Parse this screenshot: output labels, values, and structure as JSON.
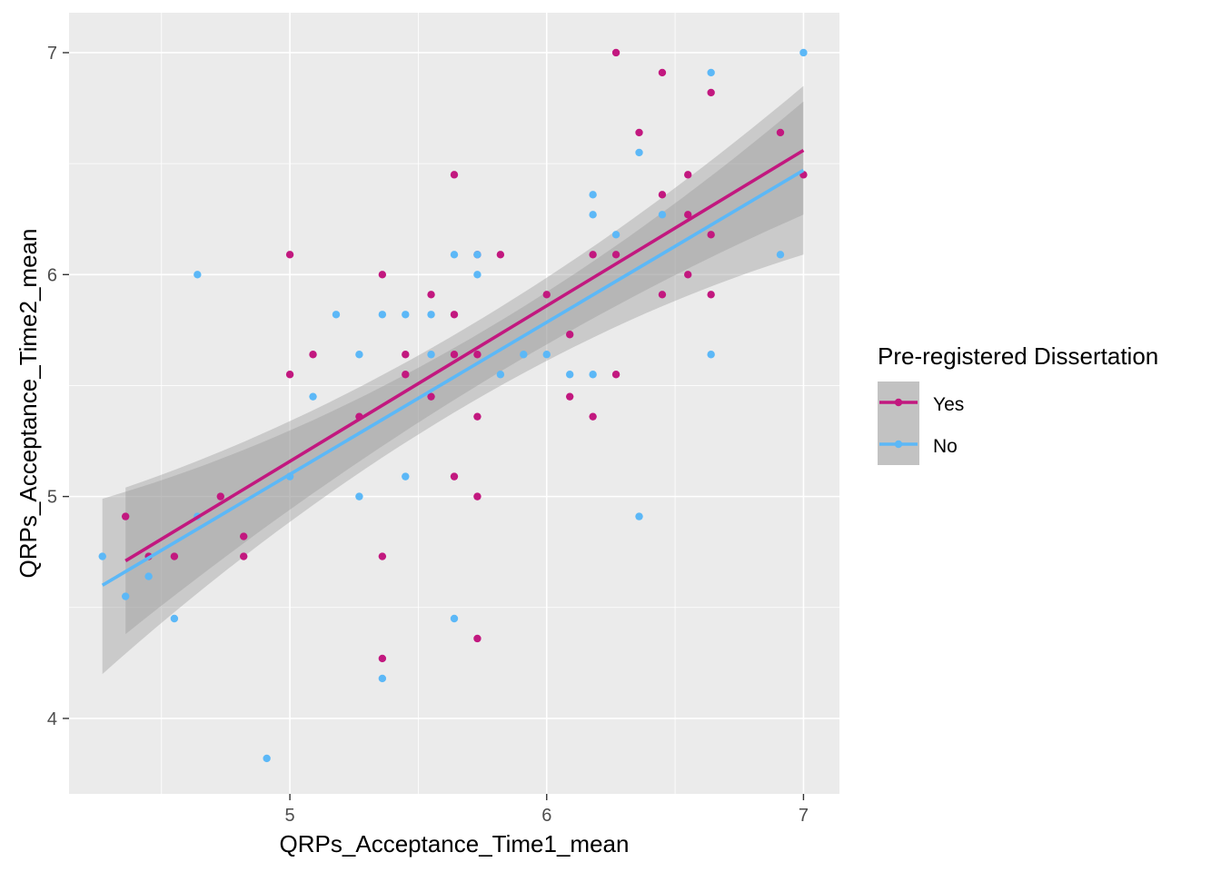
{
  "chart_data": {
    "type": "scatter",
    "title": "",
    "xlabel": "QRPs_Acceptance_Time1_mean",
    "ylabel": "QRPs_Acceptance_Time2_mean",
    "xlim": [
      4.14,
      7.14
    ],
    "ylim": [
      3.66,
      7.18
    ],
    "x_ticks": [
      5,
      6,
      7
    ],
    "y_ticks": [
      4,
      5,
      6,
      7
    ],
    "x_tick_labels": [
      "5",
      "6",
      "7"
    ],
    "y_tick_labels": [
      "4",
      "5",
      "6",
      "7"
    ],
    "grid": true,
    "legend": {
      "title": "Pre-registered Dissertation",
      "position": "right",
      "entries": [
        "Yes",
        "No"
      ]
    },
    "series": [
      {
        "name": "Yes",
        "color": "#C2187F",
        "fit": {
          "x": [
            4.36,
            7.0
          ],
          "y": [
            4.71,
            6.56
          ]
        },
        "band": {
          "x": [
            4.36,
            5.73,
            7.0
          ],
          "lower": [
            4.38,
            5.5,
            6.27
          ],
          "upper": [
            5.04,
            5.79,
            6.85
          ]
        },
        "points": [
          [
            4.36,
            4.91
          ],
          [
            4.45,
            4.73
          ],
          [
            4.55,
            4.73
          ],
          [
            4.73,
            5.0
          ],
          [
            4.82,
            4.82
          ],
          [
            4.82,
            4.73
          ],
          [
            5.0,
            6.09
          ],
          [
            5.0,
            5.55
          ],
          [
            5.09,
            5.64
          ],
          [
            5.27,
            5.36
          ],
          [
            5.36,
            6.0
          ],
          [
            5.36,
            4.73
          ],
          [
            5.36,
            4.27
          ],
          [
            5.45,
            5.64
          ],
          [
            5.45,
            5.55
          ],
          [
            5.55,
            5.91
          ],
          [
            5.55,
            5.45
          ],
          [
            5.64,
            6.45
          ],
          [
            5.64,
            5.82
          ],
          [
            5.64,
            5.64
          ],
          [
            5.64,
            5.09
          ],
          [
            5.73,
            6.09
          ],
          [
            5.73,
            5.64
          ],
          [
            5.73,
            5.36
          ],
          [
            5.73,
            5.0
          ],
          [
            5.73,
            4.36
          ],
          [
            5.82,
            6.09
          ],
          [
            6.0,
            5.91
          ],
          [
            6.09,
            5.73
          ],
          [
            6.09,
            5.45
          ],
          [
            6.18,
            6.09
          ],
          [
            6.18,
            5.36
          ],
          [
            6.27,
            7.0
          ],
          [
            6.27,
            6.09
          ],
          [
            6.27,
            5.55
          ],
          [
            6.36,
            6.64
          ],
          [
            6.45,
            6.91
          ],
          [
            6.45,
            6.36
          ],
          [
            6.45,
            5.91
          ],
          [
            6.55,
            6.45
          ],
          [
            6.55,
            6.27
          ],
          [
            6.55,
            6.0
          ],
          [
            6.64,
            6.82
          ],
          [
            6.64,
            6.18
          ],
          [
            6.64,
            5.91
          ],
          [
            6.91,
            6.64
          ],
          [
            7.0,
            6.45
          ]
        ]
      },
      {
        "name": "No",
        "color": "#5CB8F7",
        "fit": {
          "x": [
            4.27,
            7.0
          ],
          "y": [
            4.6,
            6.47
          ]
        },
        "band": {
          "x": [
            4.27,
            5.73,
            7.0
          ],
          "lower": [
            4.2,
            5.44,
            6.09
          ],
          "upper": [
            4.99,
            5.73,
            6.78
          ]
        },
        "points": [
          [
            4.27,
            4.73
          ],
          [
            4.36,
            4.55
          ],
          [
            4.45,
            4.64
          ],
          [
            4.55,
            4.45
          ],
          [
            4.64,
            6.0
          ],
          [
            4.64,
            4.91
          ],
          [
            4.91,
            3.82
          ],
          [
            5.0,
            5.09
          ],
          [
            5.09,
            5.45
          ],
          [
            5.18,
            5.82
          ],
          [
            5.27,
            5.64
          ],
          [
            5.27,
            5.0
          ],
          [
            5.36,
            5.82
          ],
          [
            5.36,
            4.18
          ],
          [
            5.45,
            5.82
          ],
          [
            5.45,
            5.09
          ],
          [
            5.55,
            5.82
          ],
          [
            5.55,
            5.64
          ],
          [
            5.64,
            6.09
          ],
          [
            5.64,
            4.45
          ],
          [
            5.73,
            6.09
          ],
          [
            5.73,
            6.0
          ],
          [
            5.82,
            5.55
          ],
          [
            5.91,
            5.64
          ],
          [
            6.0,
            5.64
          ],
          [
            6.09,
            5.55
          ],
          [
            6.18,
            6.36
          ],
          [
            6.18,
            6.27
          ],
          [
            6.18,
            5.55
          ],
          [
            6.27,
            6.18
          ],
          [
            6.36,
            6.55
          ],
          [
            6.36,
            4.91
          ],
          [
            6.45,
            6.27
          ],
          [
            6.64,
            6.91
          ],
          [
            6.64,
            5.64
          ],
          [
            6.91,
            6.09
          ],
          [
            7.0,
            7.0
          ]
        ]
      }
    ]
  }
}
